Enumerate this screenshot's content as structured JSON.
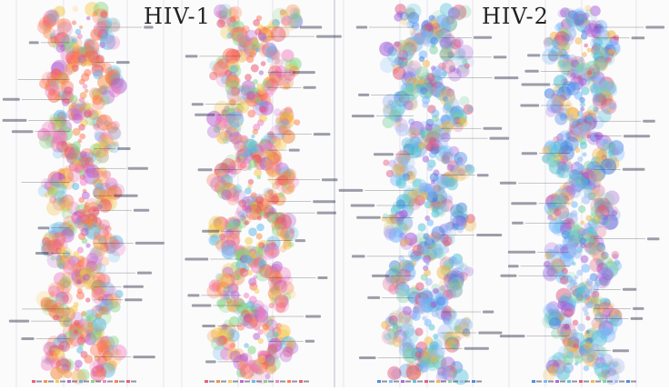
{
  "panels": {
    "hiv1": {
      "title": "HIV-1"
    },
    "hiv2": {
      "title": "HIV-2"
    }
  },
  "palettes": {
    "warm": [
      "#e8506a",
      "#f28a3b",
      "#f5c542",
      "#b45bcf",
      "#5ab4e8",
      "#7ed37a",
      "#f07ac0",
      "#ff6f4f"
    ],
    "cool": [
      "#3f7fe0",
      "#6fb3ff",
      "#a45ad6",
      "#4fc1d6",
      "#e04f78",
      "#f2b341",
      "#7ad0a0",
      "#9db9f2"
    ]
  },
  "colors": {
    "guide_lines": "#c9ccd6",
    "leader_lines": "#333333",
    "label_ink": "#2a2a44"
  }
}
